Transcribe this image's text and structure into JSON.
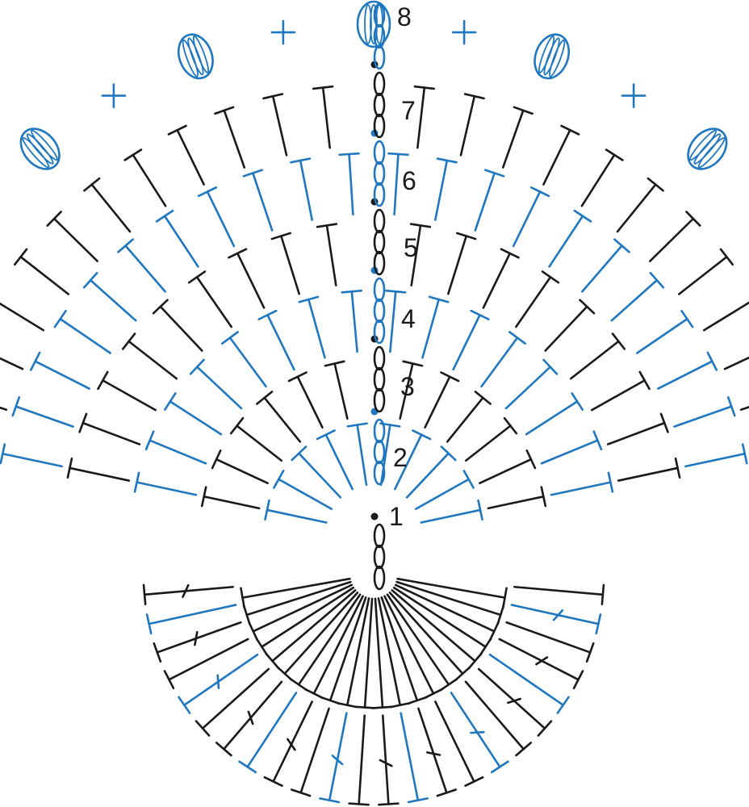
{
  "colors": {
    "black": "#1a1a1a",
    "blue": "#1f77c0"
  },
  "row_labels": [
    "1",
    "2",
    "3",
    "4",
    "5",
    "6",
    "7",
    "8"
  ],
  "row_colors": [
    "black",
    "blue",
    "black",
    "blue",
    "black",
    "blue",
    "black",
    "blue"
  ],
  "symbols": {
    "chain": "chain-oval",
    "double_crochet": "t-post-with-slash",
    "half_double": "t-post",
    "slip_stitch": "dot",
    "single_crochet": "cross",
    "popcorn": "bobble-cluster"
  }
}
